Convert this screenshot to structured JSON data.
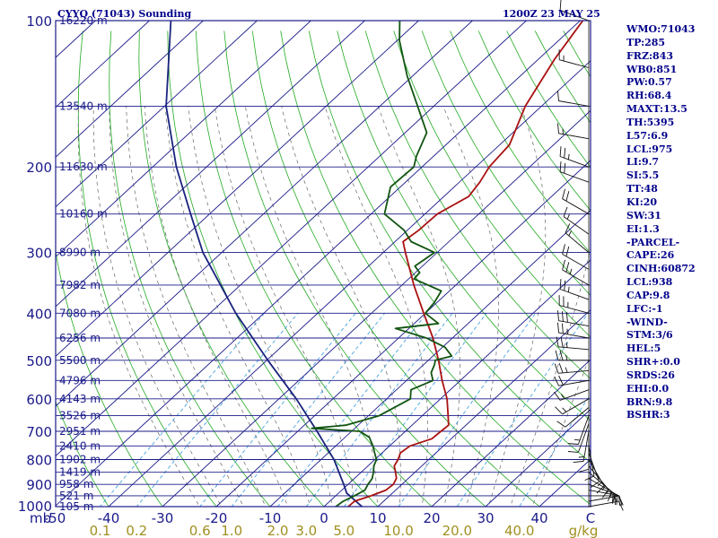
{
  "title_left": "CYYQ (71043) Sounding",
  "title_right": "1200Z 23 MAY 25",
  "indices": [
    "WMO:71043",
    "TP:285",
    "FRZ:843",
    "WB0:851",
    "PW:0.57",
    "RH:68.4",
    "MAXT:13.5",
    "TH:5395",
    "L57:6.9",
    "LCL:975",
    "LI:9.7",
    "SI:5.5",
    "TT:48",
    "KI:20",
    "SW:31",
    "EI:1.3",
    "-PARCEL-",
    "CAPE:26",
    "CINH:60872",
    "LCL:938",
    "CAP:9.8",
    "LFC:-1",
    "-WIND-",
    "STM:3/6",
    "HEL:5",
    "SHR+:0.0",
    "SRDS:26",
    "EHI:0.0",
    "BRN:9.8",
    "BSHR:3"
  ],
  "colors": {
    "frame": "#1a1a8a",
    "isobar": "#1a1a8a",
    "isotherm": "#1a1a8a",
    "dry_adiabat": "#22aa22",
    "moist_adiabat": "#666666",
    "mixing_ratio": "#3399dd",
    "temperature": "#aa1111",
    "dewpoint": "#115511",
    "parcel": "#1a237e",
    "wind_barb": "#111111",
    "text": "#00008b"
  },
  "chart_data": {
    "type": "skew-t",
    "axis_pressure_label": "mb",
    "pressure_ticks": [
      100,
      200,
      300,
      400,
      500,
      600,
      700,
      800,
      900,
      1000
    ],
    "temperature_ticks": [
      -50,
      -40,
      -30,
      -20,
      -10,
      0,
      10,
      20,
      30,
      40
    ],
    "temperature_edge_label": "C",
    "mixing_ratio_unit": "g/kg",
    "mixing_ratio_ticks": [
      "0.1",
      "0.2",
      "0.6",
      "1.0",
      "2.0",
      "3.0",
      "5.0",
      "10.0",
      "20.0",
      "40.0"
    ],
    "mixing_ratio_values": [
      0.1,
      0.2,
      0.6,
      1.0,
      2.0,
      3.0,
      5.0,
      10.0,
      20.0,
      40.0
    ],
    "height_levels": [
      {
        "p": 100,
        "label": "16220 m"
      },
      {
        "p": 150,
        "label": "13540 m"
      },
      {
        "p": 200,
        "label": "11630 m"
      },
      {
        "p": 250,
        "label": "10160 m"
      },
      {
        "p": 300,
        "label": "8990 m"
      },
      {
        "p": 350,
        "label": "7982 m"
      },
      {
        "p": 400,
        "label": "7080 m"
      },
      {
        "p": 450,
        "label": "6256 m"
      },
      {
        "p": 500,
        "label": "5500 m"
      },
      {
        "p": 550,
        "label": "4796 m"
      },
      {
        "p": 600,
        "label": "4143 m"
      },
      {
        "p": 650,
        "label": "3526 m"
      },
      {
        "p": 700,
        "label": "2951 m"
      },
      {
        "p": 750,
        "label": "2410 m"
      },
      {
        "p": 800,
        "label": "1902 m"
      },
      {
        "p": 850,
        "label": "1419 m"
      },
      {
        "p": 900,
        "label": "958 m"
      },
      {
        "p": 950,
        "label": "521 m"
      },
      {
        "p": 1000,
        "label": "105 m"
      }
    ],
    "temperature_profile": [
      {
        "p": 1010,
        "t": 3.6
      },
      {
        "p": 1000,
        "t": 4.5
      },
      {
        "p": 975,
        "t": 4.6
      },
      {
        "p": 950,
        "t": 6.6
      },
      {
        "p": 925,
        "t": 8.2
      },
      {
        "p": 900,
        "t": 8.4
      },
      {
        "p": 875,
        "t": 7.8
      },
      {
        "p": 850,
        "t": 6.4
      },
      {
        "p": 825,
        "t": 4.9
      },
      {
        "p": 800,
        "t": 4.3
      },
      {
        "p": 775,
        "t": 3.4
      },
      {
        "p": 750,
        "t": 3.8
      },
      {
        "p": 725,
        "t": 6.4
      },
      {
        "p": 700,
        "t": 6.6
      },
      {
        "p": 680,
        "t": 6.8
      },
      {
        "p": 650,
        "t": 4.8
      },
      {
        "p": 600,
        "t": 1.2
      },
      {
        "p": 550,
        "t": -3.4
      },
      {
        "p": 500,
        "t": -8.1
      },
      {
        "p": 450,
        "t": -13.6
      },
      {
        "p": 400,
        "t": -20.3
      },
      {
        "p": 350,
        "t": -27.8
      },
      {
        "p": 300,
        "t": -35.9
      },
      {
        "p": 285,
        "t": -38.5
      },
      {
        "p": 270,
        "t": -37.9
      },
      {
        "p": 250,
        "t": -37.7
      },
      {
        "p": 230,
        "t": -35.4
      },
      {
        "p": 215,
        "t": -36.2
      },
      {
        "p": 200,
        "t": -37.5
      },
      {
        "p": 180,
        "t": -38.2
      },
      {
        "p": 150,
        "t": -43.0
      },
      {
        "p": 120,
        "t": -47.0
      },
      {
        "p": 100,
        "t": -49.5
      }
    ],
    "dewpoint_profile": [
      {
        "p": 1010,
        "td": 2.1
      },
      {
        "p": 1000,
        "td": 2.2
      },
      {
        "p": 975,
        "td": 2.5
      },
      {
        "p": 950,
        "td": 3.5
      },
      {
        "p": 925,
        "td": 4.3
      },
      {
        "p": 900,
        "td": 3.7
      },
      {
        "p": 875,
        "td": 3.3
      },
      {
        "p": 850,
        "td": 2.3
      },
      {
        "p": 825,
        "td": 1.1
      },
      {
        "p": 800,
        "td": 0.3
      },
      {
        "p": 775,
        "td": -1.4
      },
      {
        "p": 750,
        "td": -3.1
      },
      {
        "p": 720,
        "td": -5.5
      },
      {
        "p": 700,
        "td": -8.5
      },
      {
        "p": 690,
        "td": -18.0
      },
      {
        "p": 680,
        "td": -12.3
      },
      {
        "p": 650,
        "td": -8.0
      },
      {
        "p": 600,
        "td": -5.6
      },
      {
        "p": 575,
        "td": -7.3
      },
      {
        "p": 550,
        "td": -5.1
      },
      {
        "p": 530,
        "td": -7.0
      },
      {
        "p": 510,
        "td": -8.0
      },
      {
        "p": 500,
        "td": -8.7
      },
      {
        "p": 490,
        "td": -6.5
      },
      {
        "p": 470,
        "td": -9.5
      },
      {
        "p": 450,
        "td": -14.8
      },
      {
        "p": 430,
        "td": -22.5
      },
      {
        "p": 420,
        "td": -15.5
      },
      {
        "p": 400,
        "td": -20.0
      },
      {
        "p": 380,
        "td": -20.5
      },
      {
        "p": 360,
        "td": -21.5
      },
      {
        "p": 340,
        "td": -29.0
      },
      {
        "p": 330,
        "td": -29.2
      },
      {
        "p": 320,
        "td": -31.4
      },
      {
        "p": 300,
        "td": -30.5
      },
      {
        "p": 285,
        "td": -37.0
      },
      {
        "p": 270,
        "td": -40.6
      },
      {
        "p": 250,
        "td": -47.5
      },
      {
        "p": 220,
        "td": -51.8
      },
      {
        "p": 200,
        "td": -51.5
      },
      {
        "p": 190,
        "td": -53.2
      },
      {
        "p": 170,
        "td": -56.0
      },
      {
        "p": 150,
        "td": -63.0
      },
      {
        "p": 130,
        "td": -71.0
      },
      {
        "p": 110,
        "td": -79.5
      },
      {
        "p": 100,
        "td": -83.5
      }
    ],
    "parcel_profile": [
      {
        "p": 1010,
        "t": 7.9
      },
      {
        "p": 938,
        "t": 1.5
      },
      {
        "p": 900,
        "t": -0.8
      },
      {
        "p": 800,
        "t": -7.6
      },
      {
        "p": 700,
        "t": -16.4
      },
      {
        "p": 600,
        "t": -26.8
      },
      {
        "p": 500,
        "t": -39.8
      },
      {
        "p": 400,
        "t": -55.2
      },
      {
        "p": 300,
        "t": -73.5
      },
      {
        "p": 250,
        "t": -83.5
      },
      {
        "p": 200,
        "t": -95.6
      },
      {
        "p": 150,
        "t": -109.7
      },
      {
        "p": 100,
        "t": -126.0
      }
    ],
    "wind_barbs": [
      {
        "p": 100,
        "dir": 290,
        "spd": 10
      },
      {
        "p": 125,
        "dir": 285,
        "spd": 15
      },
      {
        "p": 150,
        "dir": 280,
        "spd": 10
      },
      {
        "p": 175,
        "dir": 280,
        "spd": 15
      },
      {
        "p": 200,
        "dir": 290,
        "spd": 25
      },
      {
        "p": 215,
        "dir": 290,
        "spd": 20
      },
      {
        "p": 250,
        "dir": 300,
        "spd": 20
      },
      {
        "p": 275,
        "dir": 305,
        "spd": 15
      },
      {
        "p": 300,
        "dir": 310,
        "spd": 15
      },
      {
        "p": 325,
        "dir": 300,
        "spd": 20
      },
      {
        "p": 350,
        "dir": 300,
        "spd": 25
      },
      {
        "p": 375,
        "dir": 290,
        "spd": 25
      },
      {
        "p": 400,
        "dir": 285,
        "spd": 25
      },
      {
        "p": 425,
        "dir": 280,
        "spd": 30
      },
      {
        "p": 450,
        "dir": 280,
        "spd": 25
      },
      {
        "p": 475,
        "dir": 275,
        "spd": 25
      },
      {
        "p": 500,
        "dir": 270,
        "spd": 25
      },
      {
        "p": 525,
        "dir": 265,
        "spd": 25
      },
      {
        "p": 550,
        "dir": 260,
        "spd": 20
      },
      {
        "p": 575,
        "dir": 250,
        "spd": 15
      },
      {
        "p": 600,
        "dir": 240,
        "spd": 15
      },
      {
        "p": 625,
        "dir": 230,
        "spd": 10
      },
      {
        "p": 650,
        "dir": 200,
        "spd": 15
      },
      {
        "p": 675,
        "dir": 200,
        "spd": 10
      },
      {
        "p": 700,
        "dir": 190,
        "spd": 15
      },
      {
        "p": 725,
        "dir": 180,
        "spd": 10
      },
      {
        "p": 750,
        "dir": 170,
        "spd": 10
      },
      {
        "p": 775,
        "dir": 160,
        "spd": 10
      },
      {
        "p": 800,
        "dir": 150,
        "spd": 15
      },
      {
        "p": 825,
        "dir": 140,
        "spd": 15
      },
      {
        "p": 850,
        "dir": 130,
        "spd": 15
      },
      {
        "p": 875,
        "dir": 120,
        "spd": 15
      },
      {
        "p": 900,
        "dir": 110,
        "spd": 20
      },
      {
        "p": 925,
        "dir": 100,
        "spd": 20
      },
      {
        "p": 950,
        "dir": 90,
        "spd": 15
      },
      {
        "p": 975,
        "dir": 80,
        "spd": 10
      },
      {
        "p": 1000,
        "dir": 80,
        "spd": 10
      }
    ]
  }
}
